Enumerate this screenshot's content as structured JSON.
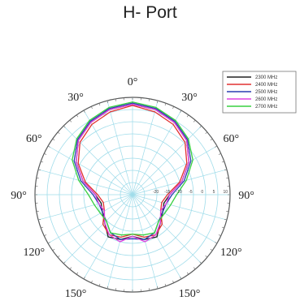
{
  "chart_data": {
    "type": "polar_line",
    "title": "H- Port",
    "angle_labels": [
      "0°",
      "30°",
      "60°",
      "90°",
      "120°",
      "150°",
      "180°",
      "150°",
      "120°",
      "90°",
      "60°",
      "30°"
    ],
    "radial_ticks": [
      -20,
      -15,
      -10,
      -5,
      0,
      5,
      10
    ],
    "r_range": [
      -30,
      12
    ],
    "grid": true,
    "legend_position": "top-right",
    "theta_deg": [
      -180,
      -165,
      -150,
      -135,
      -120,
      -105,
      -90,
      -75,
      -60,
      -45,
      -30,
      -15,
      0,
      15,
      30,
      45,
      60,
      75,
      90,
      105,
      120,
      135,
      150,
      165,
      180
    ],
    "series": [
      {
        "name": "2300 MHz",
        "color": "#222222",
        "values": [
          -12,
          -10,
          -9,
          -13,
          -15,
          -16,
          -14,
          -8,
          -2,
          3,
          6,
          8,
          9,
          8,
          6,
          3,
          -2,
          -8,
          -14,
          -16,
          -15,
          -13,
          -9,
          -10,
          -12
        ]
      },
      {
        "name": "2400 MHz",
        "color": "#e23030",
        "values": [
          -13,
          -11,
          -10,
          -12,
          -16,
          -17,
          -15,
          -9,
          -3,
          2,
          5,
          7,
          8.5,
          7,
          5,
          2,
          -3,
          -9,
          -15,
          -17,
          -16,
          -12,
          -10,
          -11,
          -13
        ]
      },
      {
        "name": "2500 MHz",
        "color": "#2a3db0",
        "values": [
          -11,
          -10,
          -11,
          -14,
          -15,
          -15,
          -13,
          -7,
          -1,
          3.5,
          6.5,
          8.5,
          9.5,
          8.5,
          6.5,
          3.5,
          -1,
          -7,
          -13,
          -15,
          -15,
          -14,
          -11,
          -10,
          -11
        ]
      },
      {
        "name": "2600 MHz",
        "color": "#e040e0",
        "values": [
          -12,
          -9,
          -10,
          -13,
          -16,
          -15,
          -14,
          -8,
          -2,
          3,
          6,
          8,
          9,
          8,
          6,
          3,
          -2,
          -8,
          -14,
          -15,
          -16,
          -13,
          -10,
          -9,
          -12
        ]
      },
      {
        "name": "2700 MHz",
        "color": "#38d040",
        "values": [
          -13,
          -12,
          -11,
          -14,
          -14,
          -13,
          -11,
          -6,
          0,
          4,
          7,
          9,
          10,
          9,
          7,
          4,
          0,
          -6,
          -11,
          -13,
          -14,
          -14,
          -11,
          -12,
          -13
        ]
      }
    ]
  }
}
